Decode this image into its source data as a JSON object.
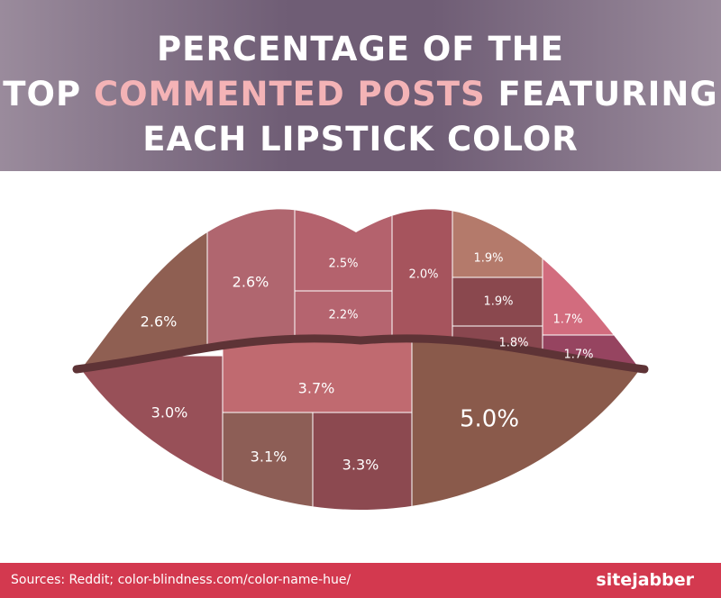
{
  "chart_data": {
    "type": "treemap",
    "title_segments": [
      "PERCENTAGE OF THE",
      "TOP",
      "COMMENTED POSTS",
      "FEATURING",
      "EACH LIPSTICK COLOR"
    ],
    "values": [
      2.6,
      2.6,
      2.5,
      2.2,
      2.0,
      1.9,
      1.9,
      1.7,
      1.8,
      1.7,
      3.0,
      3.7,
      3.1,
      3.3,
      5.0
    ],
    "value_labels": [
      "2.6%",
      "2.6%",
      "2.5%",
      "2.2%",
      "2.0%",
      "1.9%",
      "1.9%",
      "1.7%",
      "1.8%",
      "1.7%",
      "3.0%",
      "3.7%",
      "3.1%",
      "3.3%",
      "5.0%"
    ],
    "colors": [
      "#8f5f52",
      "#b0666f",
      "#b4626d",
      "#b5646f",
      "#a6545d",
      "#b47a6b",
      "#8a484e",
      "#d26c7e",
      "#89474f",
      "#964460",
      "#985058",
      "#c06a70",
      "#8d5e56",
      "#8c4950",
      "#8a5a4b"
    ],
    "source": "Sources: Reddit; color-blindness.com/color-name-hue/",
    "brand": "sitejabber"
  }
}
